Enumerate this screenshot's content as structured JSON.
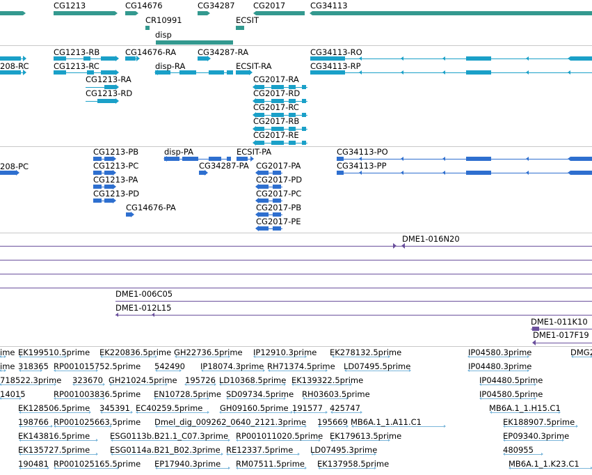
{
  "colors": {
    "gene": "#33998f",
    "rna": "#1aa0c8",
    "protein": "#2e6fcf",
    "clone": "#6a4f9c",
    "est": "#7bb6da",
    "separator": "#c8c8c8"
  },
  "tracks": {
    "genes": [
      "CG1213",
      "CG14676",
      "CG34287",
      "CG2017",
      "CG34113",
      "CR10991",
      "ECSIT",
      "disp"
    ],
    "transcripts": [
      "208-RC",
      "CG1213-RB",
      "CG1213-RC",
      "CG1213-RA",
      "CG1213-RD",
      "CG14676-RA",
      "disp-RA",
      "CG34287-RA",
      "ECSIT-RA",
      "CG2017-RA",
      "CG2017-RD",
      "CG2017-RC",
      "CG2017-RB",
      "CG2017-RE",
      "CG34113-RO",
      "CG34113-RP"
    ],
    "proteins": [
      "208-PC",
      "CG1213-PB",
      "CG1213-PC",
      "CG1213-PA",
      "CG1213-PD",
      "CG14676-PA",
      "disp-PA",
      "CG34287-PA",
      "ECSIT-PA",
      "CG2017-PA",
      "CG2017-PD",
      "CG2017-PC",
      "CG2017-PB",
      "CG2017-PE",
      "CG34113-PO",
      "CG34113-PP"
    ],
    "clones": [
      "DME1-016N20",
      "DME1-006C05",
      "DME1-012L15",
      "DME1-011K10",
      "DME1-017F19"
    ],
    "ests": [
      [
        "ime",
        "EK199510.5prime",
        "EK220836.5prime",
        "GH22736.5prime",
        "IP12910.3prime",
        "EK278132.5prime",
        "IP04580.3prime",
        "DMG2"
      ],
      [
        "ime",
        "318365",
        "RP001015752.5prime",
        "542490",
        "IP18074.3prime",
        "RH71374.5prime",
        "LD07495.5prime",
        "IP04480.3prime"
      ],
      [
        "718522.3prime",
        "323670",
        "GH21024.5prime",
        "195726",
        "LD10368.5prime",
        "EK139322.5prime",
        "IP04480.5prime"
      ],
      [
        "14015",
        "RP001003836.5prime",
        "EN10728.5prime",
        "SD09734.5prime",
        "RH03603.5prime",
        "IP04580.5prime"
      ],
      [
        "EK128506.5prime",
        "345391",
        "EC40259.5prime",
        "GH09160.5prime",
        "191577",
        "425747",
        "MB6A.1_1.H15.C1"
      ],
      [
        "198766",
        "RP001025663.5prime",
        "Dmel_dig_009262_0640_2121.3prime",
        "195669",
        "MB6A.1_1.A11.C1",
        "EK188907.5prime"
      ],
      [
        "EK143816.5prime",
        "ESG0113b.B21.1_C07.3prime",
        "RP001011020.5prime",
        "EK179613.5prime",
        "EP09340.3prime"
      ],
      [
        "EK135727.5prime",
        "ESG0114a.B21_B02.3prime",
        "RE12337.5prime",
        "LD07495.3prime",
        "480955"
      ],
      [
        "190481",
        "RP001025165.5prime",
        "EP17940.3prime",
        "RM07511.5prime",
        "EK137958.5prime",
        "MB6A.1_1.K23.C1"
      ]
    ]
  }
}
